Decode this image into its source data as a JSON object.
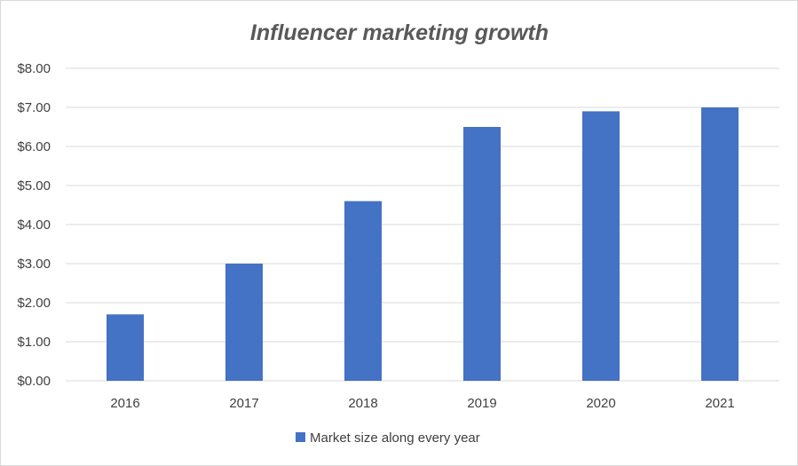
{
  "chart_data": {
    "type": "bar",
    "title": "Influencer marketing growth",
    "xlabel": "",
    "ylabel": "",
    "categories": [
      "2016",
      "2017",
      "2018",
      "2019",
      "2020",
      "2021"
    ],
    "series": [
      {
        "name": "Market size along every year",
        "values": [
          1.7,
          3.0,
          4.6,
          6.5,
          6.9,
          7.0
        ],
        "color": "#4472c4"
      }
    ],
    "ylim": [
      0,
      8
    ],
    "y_ticks": [
      "$0.00",
      "$1.00",
      "$2.00",
      "$3.00",
      "$4.00",
      "$5.00",
      "$6.00",
      "$7.00",
      "$8.00"
    ],
    "grid": true,
    "legend_position": "bottom"
  }
}
